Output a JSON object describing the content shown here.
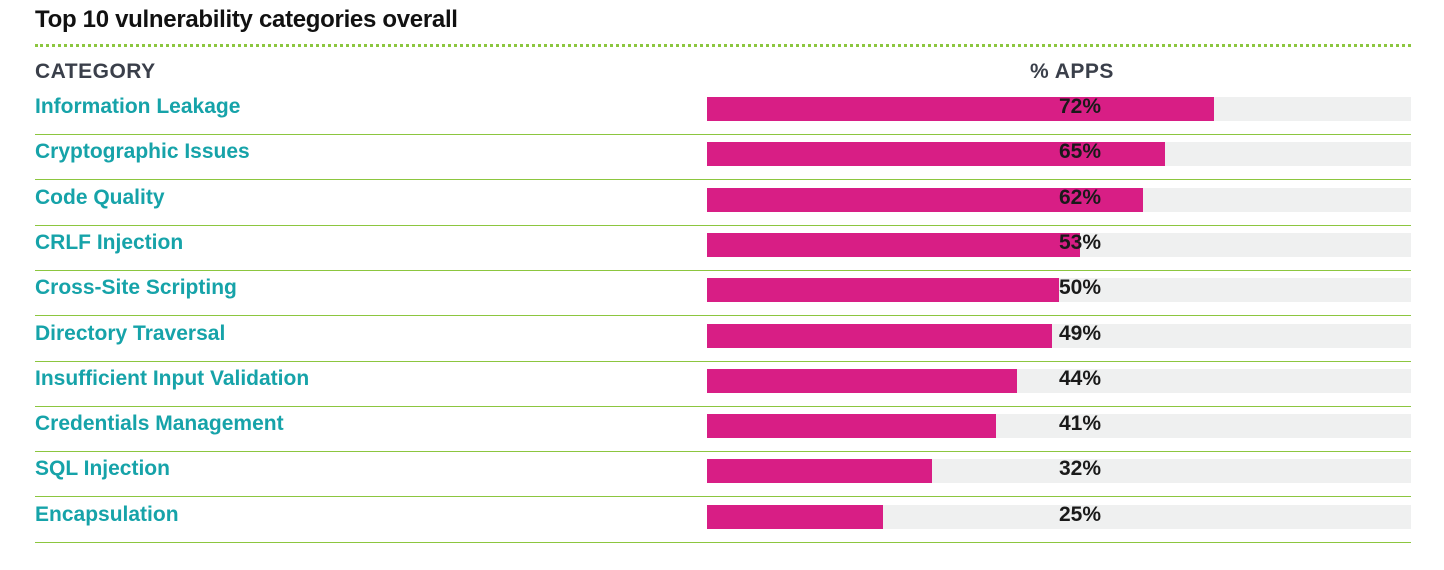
{
  "header": {
    "title": "Top 10 vulnerability categories overall",
    "category_col": "CATEGORY",
    "value_col": "% APPS"
  },
  "colors": {
    "bar": "#d81e85",
    "track": "#eff0f0",
    "label": "#16a3a9",
    "rule": "#8cc63f"
  },
  "chart_data": {
    "type": "bar",
    "orientation": "horizontal",
    "title": "Top 10 vulnerability categories overall",
    "xlabel": "% APPS",
    "ylabel": "CATEGORY",
    "xlim": [
      0,
      100
    ],
    "grid": false,
    "categories": [
      "Information Leakage",
      "Cryptographic Issues",
      "Code Quality",
      "CRLF Injection",
      "Cross-Site Scripting",
      "Directory Traversal",
      "Insufficient Input Validation",
      "Credentials Management",
      "SQL Injection",
      "Encapsulation"
    ],
    "values": [
      72,
      65,
      62,
      53,
      50,
      49,
      44,
      41,
      32,
      25
    ],
    "value_labels": [
      "72%",
      "65%",
      "62%",
      "53%",
      "50%",
      "49%",
      "44%",
      "41%",
      "32%",
      "25%"
    ]
  }
}
